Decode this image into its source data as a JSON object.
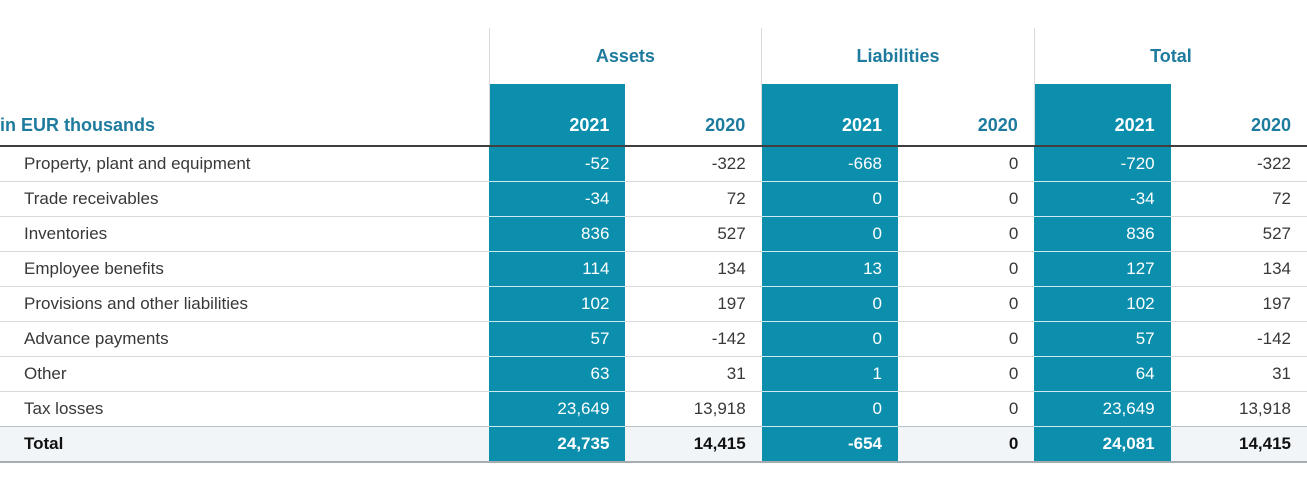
{
  "table": {
    "unit_label": "in EUR thousands",
    "col_groups": [
      {
        "label": "Assets"
      },
      {
        "label": "Liabilities"
      },
      {
        "label": "Total"
      }
    ],
    "year_headers": [
      "2021",
      "2020",
      "2021",
      "2020",
      "2021",
      "2020"
    ],
    "rows": [
      {
        "label": "Property, plant and equipment",
        "values": [
          "-52",
          "-322",
          "-668",
          "0",
          "-720",
          "-322"
        ]
      },
      {
        "label": "Trade receivables",
        "values": [
          "-34",
          "72",
          "0",
          "0",
          "-34",
          "72"
        ]
      },
      {
        "label": "Inventories",
        "values": [
          "836",
          "527",
          "0",
          "0",
          "836",
          "527"
        ]
      },
      {
        "label": "Employee benefits",
        "values": [
          "114",
          "134",
          "13",
          "0",
          "127",
          "134"
        ]
      },
      {
        "label": "Provisions and other liabilities",
        "values": [
          "102",
          "197",
          "0",
          "0",
          "102",
          "197"
        ]
      },
      {
        "label": "Advance payments",
        "values": [
          "57",
          "-142",
          "0",
          "0",
          "57",
          "-142"
        ]
      },
      {
        "label": "Other",
        "values": [
          "63",
          "31",
          "1",
          "0",
          "64",
          "31"
        ]
      },
      {
        "label": "Tax losses",
        "values": [
          "23,649",
          "13,918",
          "0",
          "0",
          "23,649",
          "13,918"
        ]
      }
    ],
    "total_row": {
      "label": "Total",
      "values": [
        "24,735",
        "14,415",
        "-654",
        "0",
        "24,081",
        "14,415"
      ]
    }
  },
  "colors": {
    "highlight": "#0B8FAD",
    "header-text": "#1E7B9E",
    "body-text": "#383838",
    "total-bg": "#F1F5F8",
    "grid-line": "#D9D9D9",
    "dark-line": "#3F3F3F"
  }
}
